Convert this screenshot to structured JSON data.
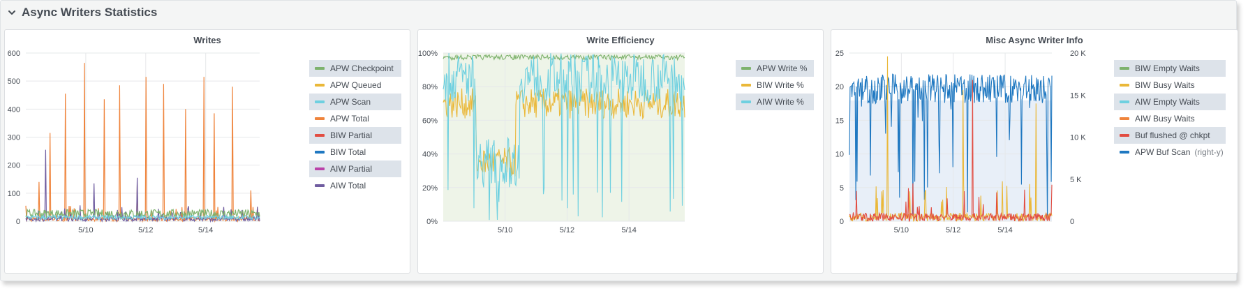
{
  "row": {
    "title": "Async Writers Statistics"
  },
  "panels": [
    {
      "title": "Writes",
      "legend": [
        {
          "label": "APW Checkpoint",
          "color": "#7eb26d"
        },
        {
          "label": "APW Queued",
          "color": "#eab839"
        },
        {
          "label": "APW Scan",
          "color": "#6ed0e0"
        },
        {
          "label": "APW Total",
          "color": "#ef843c"
        },
        {
          "label": "BIW Partial",
          "color": "#e24d42"
        },
        {
          "label": "BIW Total",
          "color": "#1f78c1"
        },
        {
          "label": "AIW Partial",
          "color": "#ba43a9"
        },
        {
          "label": "AIW Total",
          "color": "#705da0"
        }
      ]
    },
    {
      "title": "Write Efficiency",
      "legend": [
        {
          "label": "APW Write %",
          "color": "#7eb26d"
        },
        {
          "label": "BIW Write %",
          "color": "#eab839"
        },
        {
          "label": "AIW Write %",
          "color": "#6ed0e0"
        }
      ]
    },
    {
      "title": "Misc Async Writer Info",
      "legend": [
        {
          "label": "BIW Empty Waits",
          "color": "#7eb26d"
        },
        {
          "label": "BIW Busy Waits",
          "color": "#eab839"
        },
        {
          "label": "AIW Empty Waits",
          "color": "#6ed0e0"
        },
        {
          "label": "AIW Busy Waits",
          "color": "#ef843c"
        },
        {
          "label": "Buf flushed @ chkpt",
          "color": "#e24d42"
        },
        {
          "label": "APW Buf Scan",
          "color": "#1f78c1",
          "note": "(right-y)"
        }
      ]
    }
  ],
  "chart_data": [
    {
      "type": "line",
      "title": "Writes",
      "x_ticks": [
        "5/10",
        "5/12",
        "5/14"
      ],
      "y_ticks": [
        "0",
        "100",
        "200",
        "300",
        "400",
        "500",
        "600"
      ],
      "ylim": [
        0,
        600
      ],
      "grid": true,
      "legend_position": "right",
      "series": [
        {
          "name": "APW Total",
          "peaks": [
            140,
            315,
            455,
            565,
            435,
            485,
            130,
            515,
            490,
            400,
            515,
            385,
            480,
            110
          ]
        },
        {
          "name": "AIW Total",
          "peaks": [
            255,
            135,
            155,
            45,
            40
          ]
        },
        {
          "name": "APW Checkpoint",
          "baseline": 30
        },
        {
          "name": "APW Scan",
          "baseline": 15
        }
      ]
    },
    {
      "type": "area",
      "title": "Write Efficiency",
      "x_ticks": [
        "5/10",
        "5/12",
        "5/14"
      ],
      "y_ticks": [
        "0%",
        "20%",
        "40%",
        "60%",
        "80%",
        "100%"
      ],
      "ylim": [
        0,
        100
      ],
      "grid": true,
      "legend_position": "right",
      "series": [
        {
          "name": "APW Write %",
          "level": 99
        },
        {
          "name": "BIW Write %",
          "level": 70
        },
        {
          "name": "AIW Write %",
          "level": 85,
          "min": 0
        }
      ]
    },
    {
      "type": "line",
      "title": "Misc Async Writer Info",
      "x_ticks": [
        "5/10",
        "5/12",
        "5/14"
      ],
      "y_ticks_left": [
        "0",
        "5",
        "10",
        "15",
        "20",
        "25"
      ],
      "y_ticks_right": [
        "0",
        "5 K",
        "10 K",
        "15 K",
        "20 K"
      ],
      "ylim_left": [
        0,
        25
      ],
      "ylim_right": [
        0,
        20000
      ],
      "grid": true,
      "legend_position": "right",
      "series": [
        {
          "name": "APW Buf Scan",
          "axis": "right",
          "level": 14000,
          "max": 17500
        },
        {
          "name": "BIW Busy Waits",
          "axis": "left",
          "peaks": [
            24.5,
            19.5,
            17.5
          ]
        },
        {
          "name": "Buf flushed @ chkpt",
          "axis": "left",
          "peaks": [
            21
          ]
        }
      ]
    }
  ]
}
